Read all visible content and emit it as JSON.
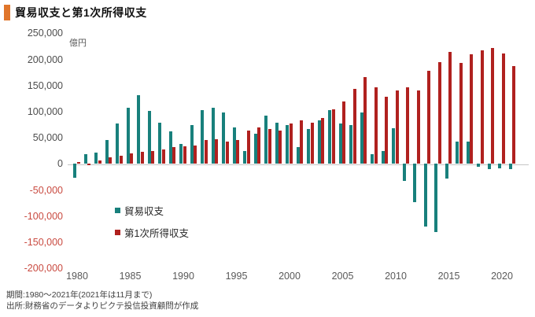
{
  "title": "貿易収支と第1次所得収支",
  "unit_label": "億円",
  "legend": {
    "trade": "貿易収支",
    "income": "第1次所得収支"
  },
  "footer": {
    "line1": "期間:1980〜2021年(2021年は11月まで)",
    "line2": "出所:財務省のデータよりピクテ投信投資顧問が作成"
  },
  "colors": {
    "trade_bar": "#18807C",
    "income_bar": "#B0211F",
    "title_accent": "#E0752B",
    "positive_label": "#4D4D4D",
    "negative_label": "#C94A40",
    "x_label": "#595959",
    "zero_line": "#C6C6C6",
    "footer_text": "#3F3F3F"
  },
  "chart_data": {
    "type": "bar",
    "title": "貿易収支と第1次所得収支",
    "xlabel": "",
    "ylabel": "億円",
    "ylim": [
      -200000,
      250000
    ],
    "grid": false,
    "legend_position": "inside-left",
    "y_ticks": [
      250000,
      200000,
      150000,
      100000,
      50000,
      0,
      -50000,
      -100000,
      -150000,
      -200000
    ],
    "x_ticks": [
      1980,
      1985,
      1990,
      1995,
      2000,
      2005,
      2010,
      2015,
      2020
    ],
    "categories": [
      1980,
      1981,
      1982,
      1983,
      1984,
      1985,
      1986,
      1987,
      1988,
      1989,
      1990,
      1991,
      1992,
      1993,
      1994,
      1995,
      1996,
      1997,
      1998,
      1999,
      2000,
      2001,
      2002,
      2003,
      2004,
      2005,
      2006,
      2007,
      2008,
      2009,
      2010,
      2011,
      2012,
      2013,
      2014,
      2015,
      2016,
      2017,
      2018,
      2019,
      2020,
      2021
    ],
    "series": [
      {
        "name": "貿易収支",
        "key": "trade",
        "color": "#18807C",
        "values": [
          -26000,
          18000,
          21000,
          45000,
          77000,
          108000,
          131000,
          102000,
          79000,
          62000,
          38000,
          74000,
          103000,
          108000,
          99000,
          70000,
          24000,
          57000,
          93000,
          79000,
          75000,
          32000,
          66000,
          84000,
          103000,
          78000,
          74000,
          99000,
          19000,
          25000,
          68000,
          -33000,
          -73000,
          -120000,
          -131000,
          -28000,
          42000,
          43000,
          -6000,
          -10000,
          -8000,
          -10000
        ]
      },
      {
        "name": "第1次所得収支",
        "key": "income",
        "color": "#B0211F",
        "values": [
          3500,
          -2000,
          7000,
          12000,
          16000,
          20000,
          23000,
          25000,
          27000,
          32000,
          33000,
          35000,
          46000,
          47000,
          42000,
          45000,
          63000,
          70000,
          66000,
          64000,
          78000,
          83000,
          79000,
          88000,
          105000,
          120000,
          143000,
          166000,
          146000,
          128000,
          140000,
          147000,
          141000,
          178000,
          195000,
          214000,
          193000,
          210000,
          217000,
          222000,
          211000,
          187000
        ]
      }
    ]
  }
}
